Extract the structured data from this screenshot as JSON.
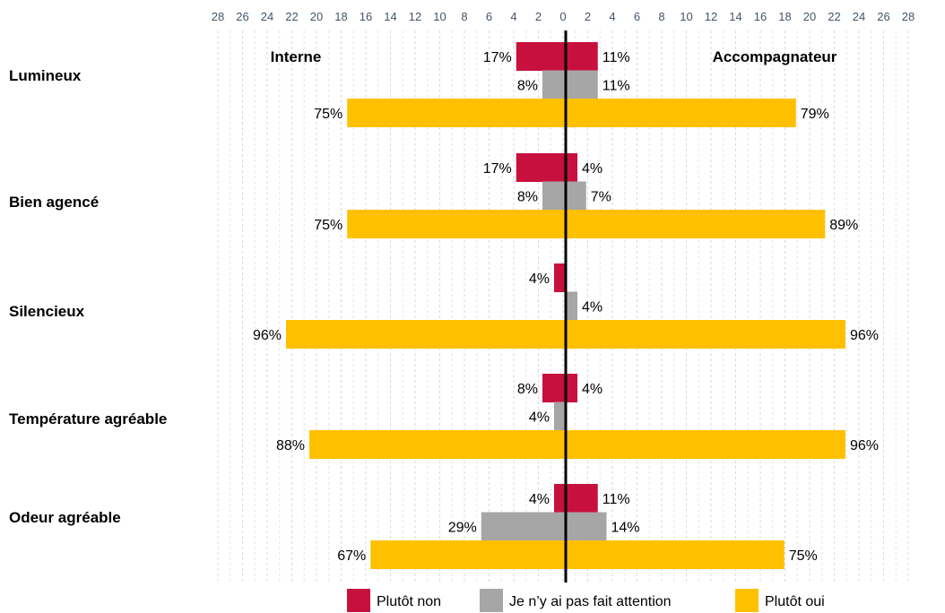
{
  "chart_data": {
    "type": "bar",
    "orientation": "horizontal-diverging",
    "left_label": "Interne",
    "right_label": "Accompagnateur",
    "categories": [
      "Lumineux",
      "Bien agencé",
      "Silencieux",
      "Température agréable",
      "Odeur agréable"
    ],
    "series": [
      {
        "name": "Plutôt non",
        "color": "#C8103E",
        "left": [
          17,
          17,
          4,
          8,
          4
        ],
        "right": [
          11,
          4,
          null,
          4,
          11
        ],
        "left_labels": [
          "17%",
          "17%",
          "4%",
          "8%",
          "4%"
        ],
        "right_labels": [
          "11%",
          "4%",
          "",
          "4%",
          "11%"
        ]
      },
      {
        "name": "Je n’y ai pas fait attention",
        "color": "#A6A6A6",
        "left": [
          8,
          8,
          null,
          4,
          29
        ],
        "right": [
          11,
          7,
          4,
          null,
          14
        ],
        "left_labels": [
          "8%",
          "8%",
          "",
          "4%",
          "29%"
        ],
        "right_labels": [
          "11%",
          "7%",
          "4%",
          "",
          "14%"
        ]
      },
      {
        "name": "Plutôt oui",
        "color": "#FFC000",
        "left": [
          75,
          75,
          96,
          88,
          67
        ],
        "right": [
          79,
          89,
          96,
          96,
          75
        ],
        "left_labels": [
          "75%",
          "75%",
          "96%",
          "88%",
          "67%"
        ],
        "right_labels": [
          "79%",
          "89%",
          "96%",
          "96%",
          "75%"
        ]
      }
    ],
    "axis_ticks": [
      "28",
      "26",
      "24",
      "22",
      "20",
      "18",
      "16",
      "14",
      "12",
      "10",
      "8",
      "6",
      "4",
      "2",
      "0",
      "2",
      "4",
      "6",
      "8",
      "10",
      "12",
      "14",
      "16",
      "18",
      "20",
      "22",
      "24",
      "26",
      "28"
    ],
    "grid": true,
    "legend_position": "bottom"
  }
}
